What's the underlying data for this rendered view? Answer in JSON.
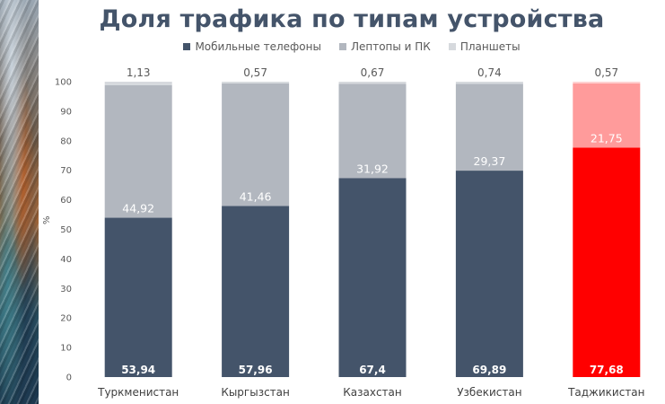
{
  "chart_data": {
    "type": "bar",
    "stacked": true,
    "title": "Доля трафика по типам устройства",
    "ylabel": "%",
    "ylim": [
      0,
      100
    ],
    "yticks": [
      "0",
      "10",
      "20",
      "30",
      "40",
      "50",
      "60",
      "70",
      "80",
      "90",
      "100"
    ],
    "legend_position": "top",
    "grid": false,
    "categories": [
      "Туркменистан",
      "Кыргызстан",
      "Казахстан",
      "Узбекистан",
      "Таджикистан"
    ],
    "series": [
      {
        "name": "Мобильные телефоны",
        "values": [
          53.94,
          57.96,
          67.4,
          69.89,
          77.68
        ],
        "labels": [
          "53,94",
          "57,96",
          "67,4",
          "69,89",
          "77,68"
        ],
        "color": "#44546a"
      },
      {
        "name": "Лептопы и ПК",
        "values": [
          44.92,
          41.46,
          31.92,
          29.37,
          21.75
        ],
        "labels": [
          "44,92",
          "41,46",
          "31,92",
          "29,37",
          "21,75"
        ],
        "color": "#b2b7bf"
      },
      {
        "name": "Планшеты",
        "values": [
          1.13,
          0.57,
          0.67,
          0.74,
          0.57
        ],
        "labels": [
          "1,13",
          "0,57",
          "0,67",
          "0,74",
          "0,57"
        ],
        "color": "#d6d9dd"
      }
    ],
    "highlight": {
      "category": "Таджикистан",
      "colors": [
        "#ff0000",
        "#ff9b9b",
        "#ffd0d0"
      ]
    },
    "label_colors": {
      "inside": "#ffffff",
      "above": "#595959"
    }
  }
}
